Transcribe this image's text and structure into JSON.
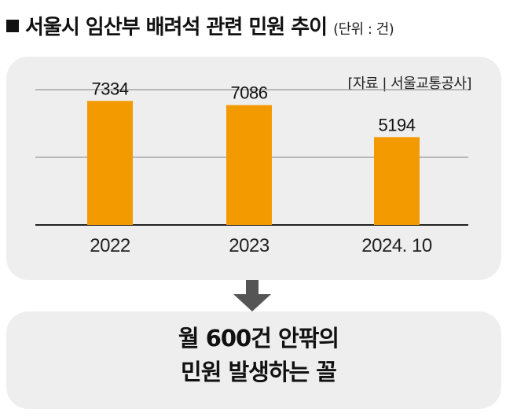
{
  "header": {
    "title": "서울시 임산부 배려석 관련 민원 추이",
    "unit": "(단위 : 건)"
  },
  "source": "[자료 | 서울교통공사]",
  "chart_data": {
    "type": "bar",
    "categories": [
      "2022",
      "2023",
      "2024. 10"
    ],
    "values": [
      7334,
      7086,
      5194
    ],
    "data_labels": [
      "7334",
      "7086",
      "5194"
    ],
    "ylim": [
      0,
      8000
    ],
    "grid": true,
    "bar_color": "#f29a00"
  },
  "summary": {
    "line1": "월 600건 안팎의",
    "line2": "민원 발생하는 꼴"
  },
  "colors": {
    "panel": "#eeeeee",
    "bar": "#f29a00",
    "axis": "#222222",
    "grid": "#999999",
    "arrow": "#555555"
  }
}
